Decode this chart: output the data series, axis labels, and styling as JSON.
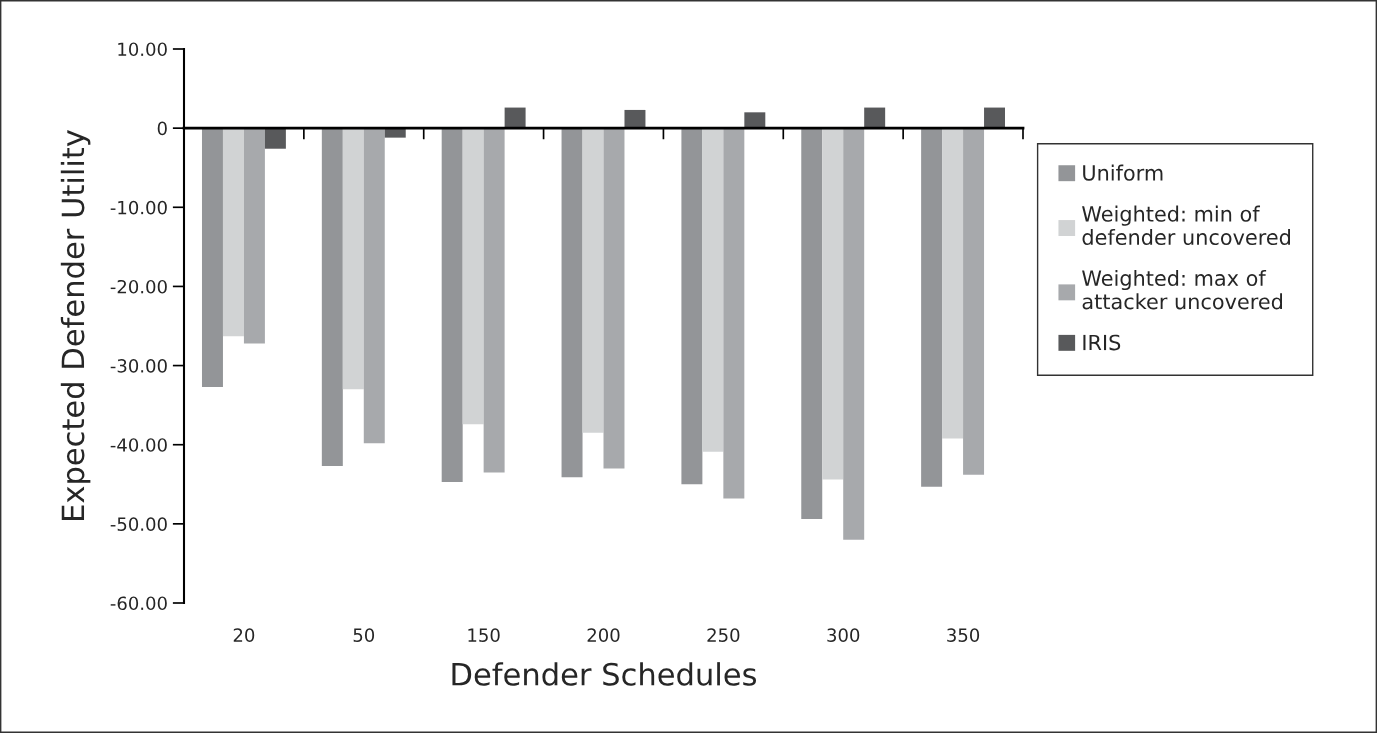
{
  "chart_data": {
    "type": "bar",
    "xlabel": "Defender Schedules",
    "ylabel": "Expected Defender Utility",
    "categories": [
      "20",
      "50",
      "150",
      "200",
      "250",
      "300",
      "350"
    ],
    "series": [
      {
        "name": "Uniform",
        "color": "#939598",
        "values": [
          -32.7,
          -42.7,
          -44.7,
          -44.1,
          -45.0,
          -49.4,
          -45.3
        ]
      },
      {
        "name": "Weighted: min of\ndefender uncovered",
        "color": "#d1d3d4",
        "values": [
          -26.3,
          -33.0,
          -37.4,
          -38.5,
          -40.9,
          -44.4,
          -39.2
        ]
      },
      {
        "name": "Weighted: max of\nattacker uncovered",
        "color": "#a7a9ac",
        "values": [
          -27.2,
          -39.8,
          -43.5,
          -43.0,
          -46.8,
          -52.0,
          -43.8
        ]
      },
      {
        "name": "IRIS",
        "color": "#58595b",
        "values": [
          -2.6,
          -1.2,
          2.6,
          2.3,
          2.0,
          2.6,
          2.6
        ]
      }
    ],
    "ylim": [
      -60,
      10
    ],
    "yticks": [
      {
        "value": 10,
        "label": "10.00"
      },
      0,
      {
        "value": -10,
        "label": "-10.00"
      },
      {
        "value": -20,
        "label": "-20.00"
      },
      {
        "value": -30,
        "label": "-30.00"
      },
      {
        "value": -40,
        "label": "-40.00"
      },
      {
        "value": -50,
        "label": "-50.00"
      },
      {
        "value": -60,
        "label": "-60.00"
      }
    ],
    "legend": "right"
  }
}
